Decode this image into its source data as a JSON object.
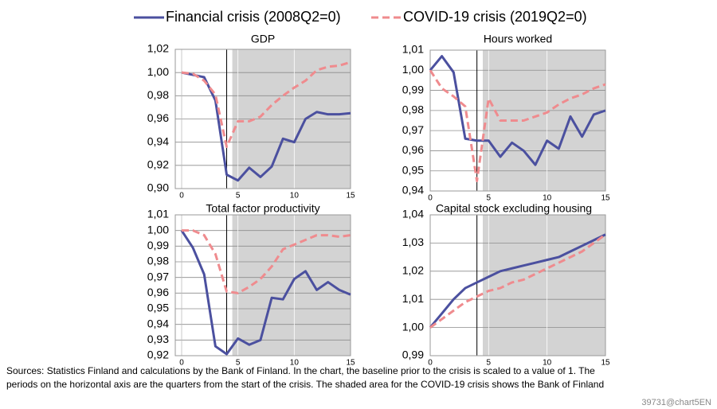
{
  "chart_data": [
    {
      "type": "line",
      "title": "GDP",
      "x": [
        0,
        1,
        2,
        3,
        4,
        5,
        6,
        7,
        8,
        9,
        10,
        11,
        12,
        13,
        14,
        15
      ],
      "xlim": [
        0,
        15
      ],
      "xticks": [
        0,
        5,
        10,
        15
      ],
      "ylim": [
        0.9,
        1.02
      ],
      "yticks": [
        {
          "value": 0.9,
          "label": "0,90"
        },
        {
          "value": 0.92,
          "label": "0,92"
        },
        {
          "value": 0.94,
          "label": "0,94"
        },
        {
          "value": 0.96,
          "label": "0,96"
        },
        {
          "value": 0.98,
          "label": "0,98"
        },
        {
          "value": 1.0,
          "label": "1,00"
        },
        {
          "value": 1.02,
          "label": "1,02"
        }
      ],
      "grid": true,
      "shade": [
        4.5,
        15
      ],
      "vline": 4,
      "series": [
        {
          "name": "Financial crisis (2008Q2=0)",
          "color": "#4b509f",
          "dashed": false,
          "values": [
            1.0,
            0.998,
            0.996,
            0.976,
            0.912,
            0.907,
            0.918,
            0.91,
            0.919,
            0.943,
            0.94,
            0.96,
            0.966,
            0.964,
            0.964,
            0.965
          ]
        },
        {
          "name": "COVID-19 crisis (2019Q2=0)",
          "color": "#ef8b8e",
          "dashed": true,
          "values": [
            1.0,
            0.999,
            0.993,
            0.981,
            0.936,
            0.958,
            0.958,
            0.962,
            0.972,
            0.98,
            0.987,
            0.993,
            1.002,
            1.005,
            1.006,
            1.009
          ]
        }
      ]
    },
    {
      "type": "line",
      "title": "Hours worked",
      "x": [
        0,
        1,
        2,
        3,
        4,
        5,
        6,
        7,
        8,
        9,
        10,
        11,
        12,
        13,
        14,
        15
      ],
      "xlim": [
        0,
        15
      ],
      "xticks": [
        0,
        5,
        10,
        15
      ],
      "ylim": [
        0.94,
        1.01
      ],
      "yticks": [
        {
          "value": 0.94,
          "label": "0,94"
        },
        {
          "value": 0.95,
          "label": "0,95"
        },
        {
          "value": 0.96,
          "label": "0,96"
        },
        {
          "value": 0.97,
          "label": "0,97"
        },
        {
          "value": 0.98,
          "label": "0,98"
        },
        {
          "value": 0.99,
          "label": "0,99"
        },
        {
          "value": 1.0,
          "label": "1,00"
        },
        {
          "value": 1.01,
          "label": "1,01"
        }
      ],
      "grid": true,
      "shade": [
        4.5,
        15
      ],
      "vline": 4,
      "series": [
        {
          "color": "#4b509f",
          "dashed": false,
          "values": [
            1.0,
            1.007,
            0.999,
            0.966,
            0.965,
            0.965,
            0.957,
            0.964,
            0.96,
            0.953,
            0.965,
            0.961,
            0.977,
            0.967,
            0.978,
            0.98
          ]
        },
        {
          "color": "#ef8b8e",
          "dashed": true,
          "values": [
            1.0,
            0.991,
            0.987,
            0.982,
            0.945,
            0.986,
            0.975,
            0.975,
            0.975,
            0.977,
            0.979,
            0.983,
            0.986,
            0.988,
            0.991,
            0.993
          ]
        }
      ]
    },
    {
      "type": "line",
      "title": "Total factor productivity",
      "x": [
        0,
        1,
        2,
        3,
        4,
        5,
        6,
        7,
        8,
        9,
        10,
        11,
        12,
        13,
        14,
        15
      ],
      "xlim": [
        0,
        15
      ],
      "xticks": [
        0,
        5,
        10,
        15
      ],
      "ylim": [
        0.92,
        1.01
      ],
      "yticks": [
        {
          "value": 0.92,
          "label": "0,92"
        },
        {
          "value": 0.93,
          "label": "0,93"
        },
        {
          "value": 0.94,
          "label": "0,94"
        },
        {
          "value": 0.95,
          "label": "0,95"
        },
        {
          "value": 0.96,
          "label": "0,96"
        },
        {
          "value": 0.97,
          "label": "0,97"
        },
        {
          "value": 0.98,
          "label": "0,98"
        },
        {
          "value": 0.99,
          "label": "0,99"
        },
        {
          "value": 1.0,
          "label": "1,00"
        },
        {
          "value": 1.01,
          "label": "1,01"
        }
      ],
      "grid": true,
      "shade": [
        4.5,
        15
      ],
      "vline": 4,
      "series": [
        {
          "color": "#4b509f",
          "dashed": false,
          "values": [
            1.0,
            0.989,
            0.972,
            0.926,
            0.921,
            0.931,
            0.927,
            0.93,
            0.957,
            0.956,
            0.969,
            0.974,
            0.962,
            0.967,
            0.962,
            0.959
          ]
        },
        {
          "color": "#ef8b8e",
          "dashed": true,
          "values": [
            1.0,
            1.0,
            0.997,
            0.985,
            0.961,
            0.96,
            0.964,
            0.969,
            0.977,
            0.988,
            0.991,
            0.994,
            0.997,
            0.997,
            0.996,
            0.997
          ]
        }
      ]
    },
    {
      "type": "line",
      "title": "Capital stock excluding housing",
      "x": [
        0,
        1,
        2,
        3,
        4,
        5,
        6,
        7,
        8,
        9,
        10,
        11,
        12,
        13,
        14,
        15
      ],
      "xlim": [
        0,
        15
      ],
      "xticks": [
        0,
        5,
        10,
        15
      ],
      "ylim": [
        0.99,
        1.04
      ],
      "yticks": [
        {
          "value": 0.99,
          "label": "0,99"
        },
        {
          "value": 1.0,
          "label": "1,00"
        },
        {
          "value": 1.01,
          "label": "1,01"
        },
        {
          "value": 1.02,
          "label": "1,02"
        },
        {
          "value": 1.03,
          "label": "1,03"
        },
        {
          "value": 1.04,
          "label": "1,04"
        }
      ],
      "grid": true,
      "shade": [
        4.5,
        15
      ],
      "vline": 4,
      "series": [
        {
          "color": "#4b509f",
          "dashed": false,
          "values": [
            1.0,
            1.005,
            1.01,
            1.014,
            1.016,
            1.018,
            1.02,
            1.021,
            1.022,
            1.023,
            1.024,
            1.025,
            1.027,
            1.029,
            1.031,
            1.033
          ]
        },
        {
          "color": "#ef8b8e",
          "dashed": true,
          "values": [
            1.0,
            1.003,
            1.006,
            1.009,
            1.011,
            1.013,
            1.014,
            1.016,
            1.017,
            1.019,
            1.021,
            1.023,
            1.025,
            1.027,
            1.03,
            1.033
          ]
        }
      ]
    }
  ],
  "footer": {
    "notes": [
      "Sources: Statistics Finland and calculations by the Bank of Finland. In the chart, the baseline prior to the crisis is scaled to a value of 1. The",
      "periods on the horizontal axis are the quarters from the start of the crisis. The shaded area for the COVID-19 crisis shows the Bank of Finland"
    ],
    "code": "39731@chart5EN"
  }
}
